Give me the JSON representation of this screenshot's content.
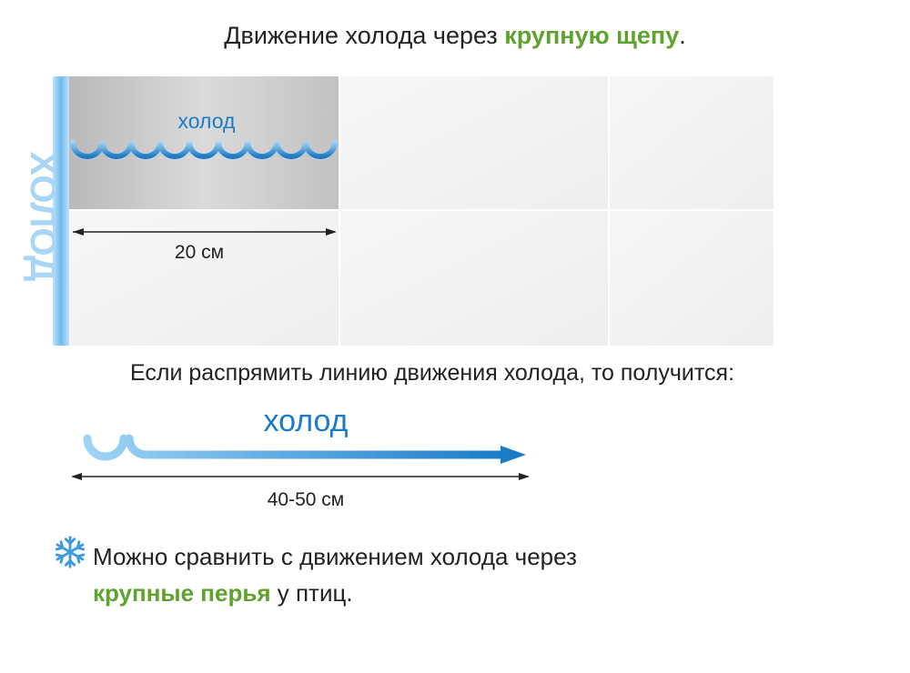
{
  "title": {
    "prefix": "Движение холода через ",
    "highlight": "крупную щепу",
    "suffix": "."
  },
  "side_label": "ХОЛОД",
  "grid_label": "холод",
  "grid_measure": "20 см",
  "subtitle": "Если распрямить линию движения холода, то получится:",
  "arrow_label": "холод",
  "arrow_measure": "40-50 см",
  "note": {
    "line1": "Можно сравнить с движением холода через",
    "highlight": "крупные перья",
    "line2_suffix": " у птиц."
  },
  "colors": {
    "accent_green": "#5fa32e",
    "cold_blue": "#1a7cc7",
    "light_blue": "#8fcaf2",
    "cell_gray": "#cfcfcf"
  },
  "icons": {
    "note_icon": "snowflake-icon"
  }
}
